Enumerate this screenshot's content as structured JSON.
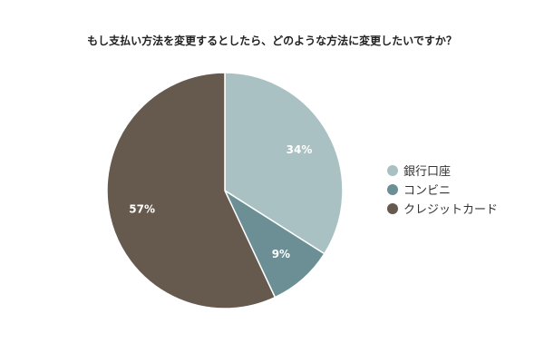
{
  "chart_data": {
    "type": "pie",
    "title": "もし支払い方法を変更するとしたら、どのような方法に変更したいですか？",
    "categories": [
      "銀行口座",
      "コンビニ",
      "クレジットカード"
    ],
    "values": [
      34,
      9,
      57
    ],
    "labels": [
      "34%",
      "9%",
      "57%"
    ],
    "colors": [
      "#a9c1c2",
      "#6b8f94",
      "#66594e"
    ],
    "legend": "right"
  }
}
